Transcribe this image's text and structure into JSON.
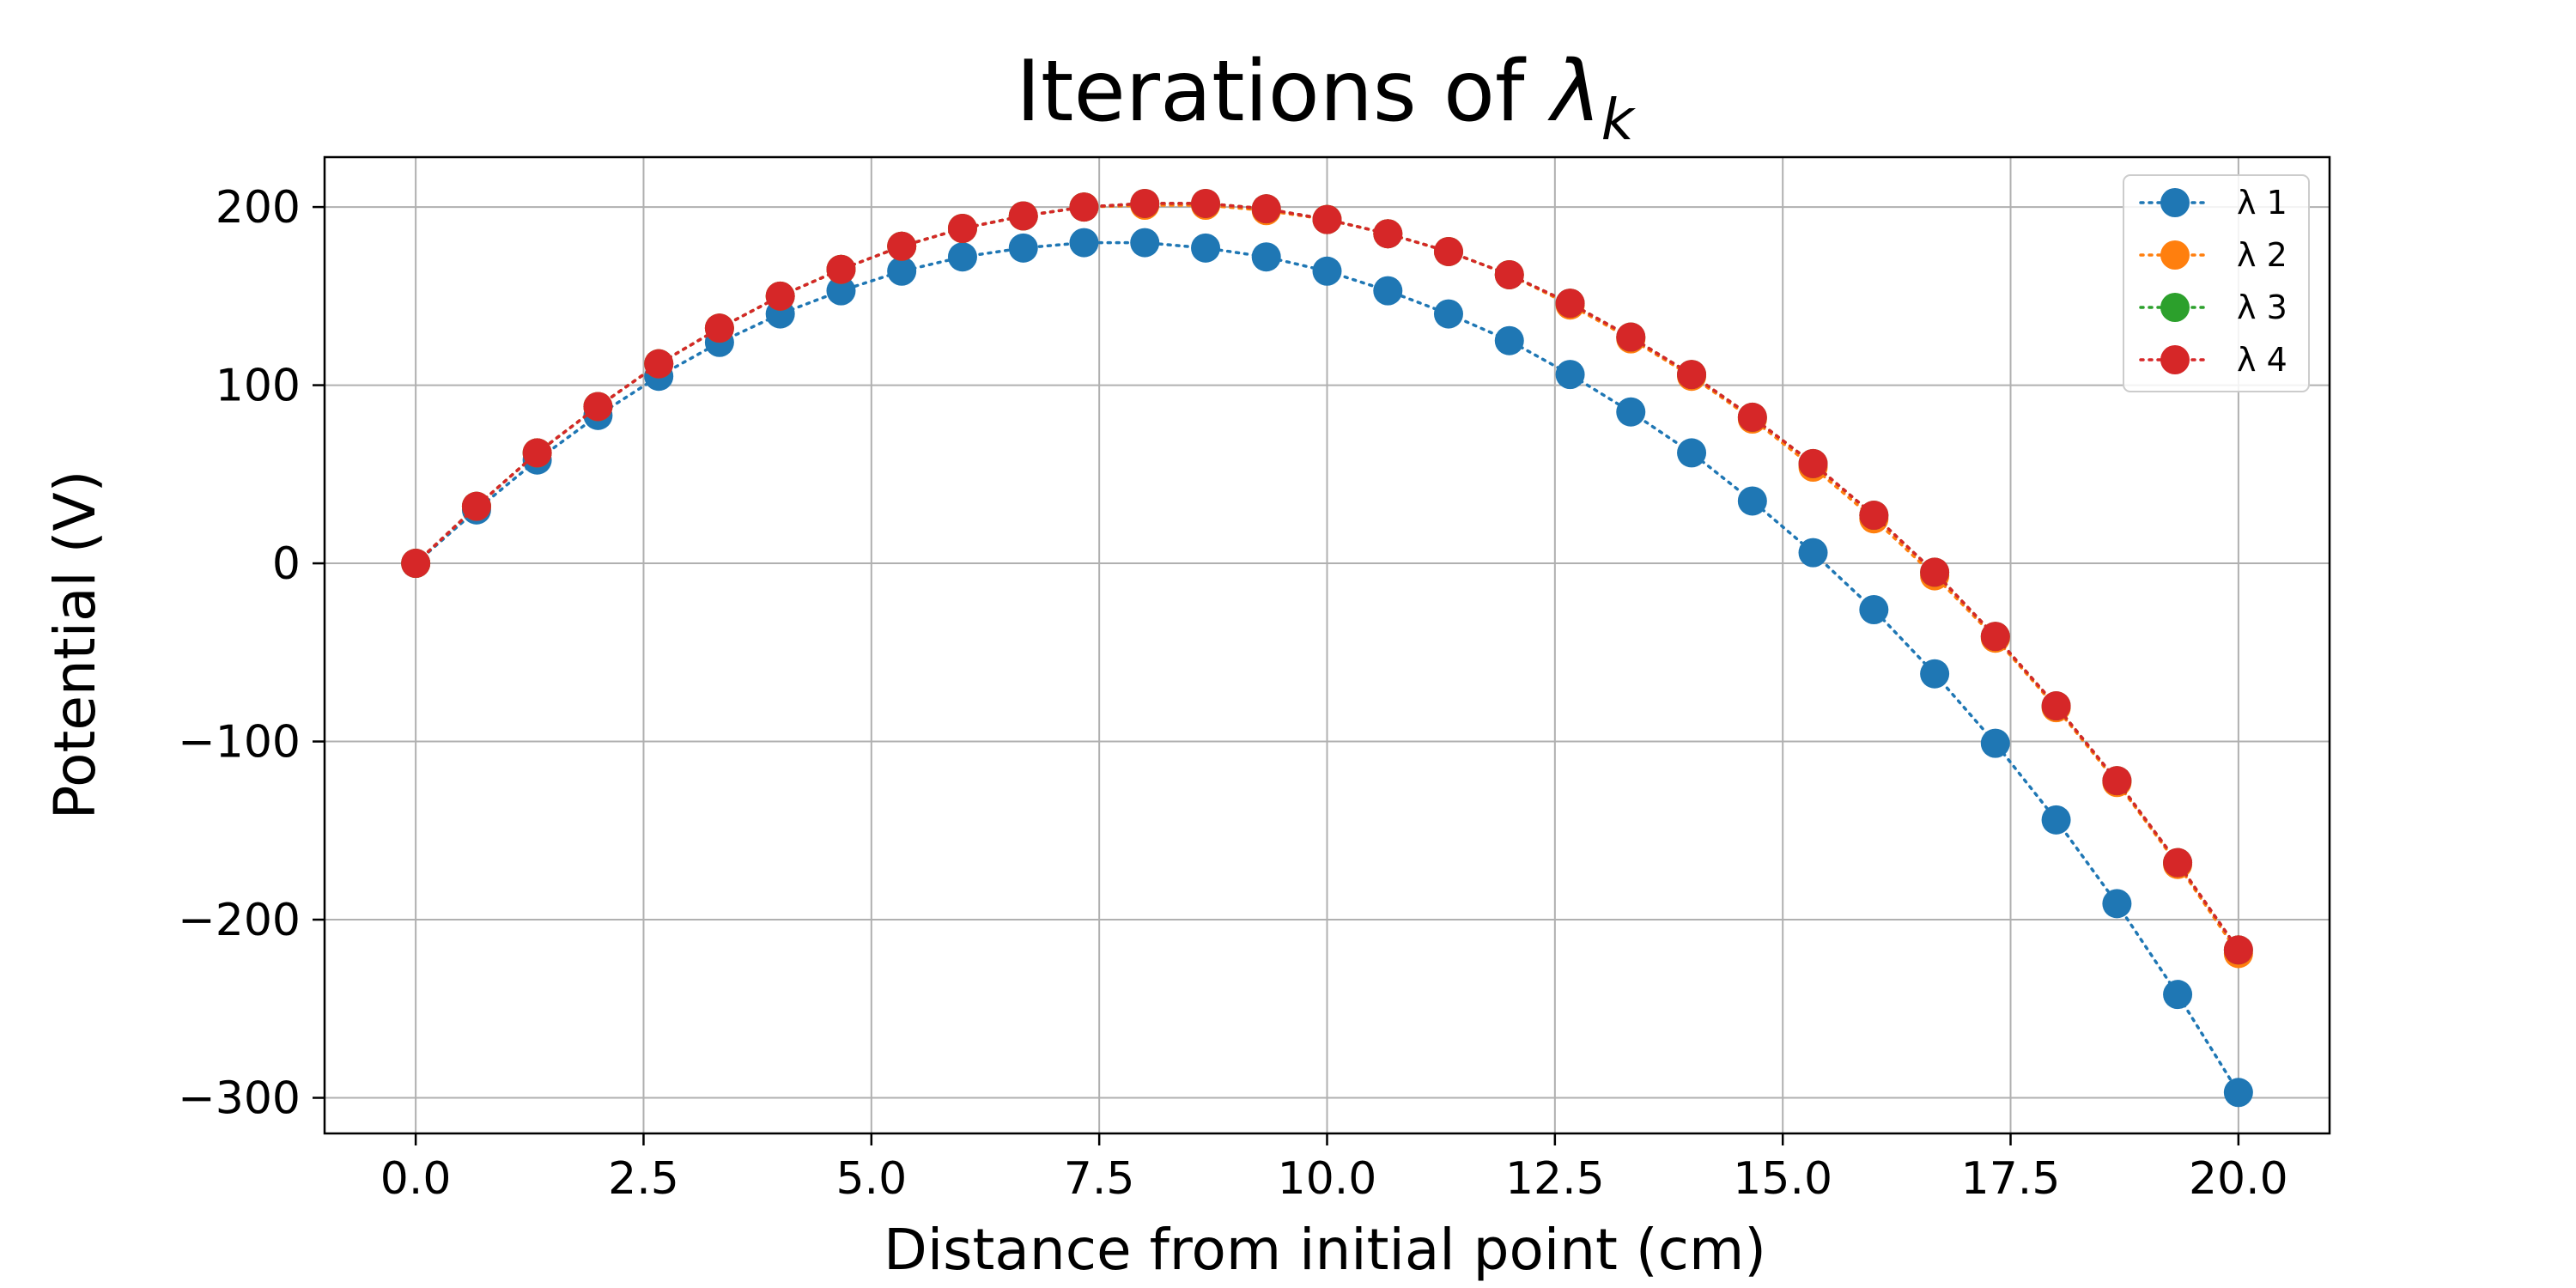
{
  "chart_data": {
    "type": "line",
    "title": "Iterations of ",
    "title_symbol": "λ",
    "title_subscript": "k",
    "xlabel": "Distance from initial point (cm)",
    "ylabel": "Potential (V)",
    "xlim": [
      -1.0,
      21.0
    ],
    "ylim": [
      -320,
      228
    ],
    "xticks": [
      0.0,
      2.5,
      5.0,
      7.5,
      10.0,
      12.5,
      15.0,
      17.5,
      20.0
    ],
    "xtick_labels": [
      "0.0",
      "2.5",
      "5.0",
      "7.5",
      "10.0",
      "12.5",
      "15.0",
      "17.5",
      "20.0"
    ],
    "yticks": [
      -300,
      -200,
      -100,
      0,
      100,
      200
    ],
    "ytick_labels": [
      "−300",
      "−200",
      "−100",
      "0",
      "100",
      "200"
    ],
    "grid": true,
    "legend_position": "top-right",
    "x": [
      0.0,
      0.667,
      1.333,
      2.0,
      2.667,
      3.333,
      4.0,
      4.667,
      5.333,
      6.0,
      6.667,
      7.333,
      8.0,
      8.667,
      9.333,
      10.0,
      10.667,
      11.333,
      12.0,
      12.667,
      13.333,
      14.0,
      14.667,
      15.333,
      16.0,
      16.667,
      17.333,
      18.0,
      18.667,
      19.333,
      20.0
    ],
    "series": [
      {
        "name": "λ 1",
        "color": "#1f77b4",
        "values": [
          0,
          30,
          58,
          83,
          105,
          124,
          140,
          153,
          164,
          172,
          177,
          180,
          180,
          177,
          172,
          164,
          153,
          140,
          125,
          106,
          85,
          62,
          35,
          6,
          -26,
          -62,
          -101,
          -144,
          -191,
          -242,
          -297
        ]
      },
      {
        "name": "λ 2",
        "color": "#ff7f0e",
        "values": [
          0,
          32,
          62,
          88,
          112,
          132,
          150,
          165,
          178,
          188,
          195,
          200,
          201,
          201,
          198,
          193,
          185,
          175,
          162,
          145,
          126,
          105,
          81,
          54,
          25,
          -7,
          -42,
          -81,
          -123,
          -169,
          -219
        ]
      },
      {
        "name": "λ 3",
        "color": "#2ca02c",
        "values": [
          0,
          32,
          62,
          88,
          112,
          132,
          150,
          165,
          178,
          188,
          195,
          200,
          202,
          202,
          199,
          193,
          185,
          175,
          162,
          146,
          127,
          106,
          82,
          56,
          27,
          -5,
          -41,
          -80,
          -122,
          -168,
          -217
        ]
      },
      {
        "name": "λ 4",
        "color": "#d62728",
        "values": [
          0,
          32,
          62,
          88,
          112,
          132,
          150,
          165,
          178,
          188,
          195,
          200,
          202,
          202,
          199,
          193,
          185,
          175,
          162,
          146,
          127,
          106,
          82,
          56,
          27,
          -5,
          -41,
          -80,
          -122,
          -168,
          -217
        ]
      }
    ]
  }
}
